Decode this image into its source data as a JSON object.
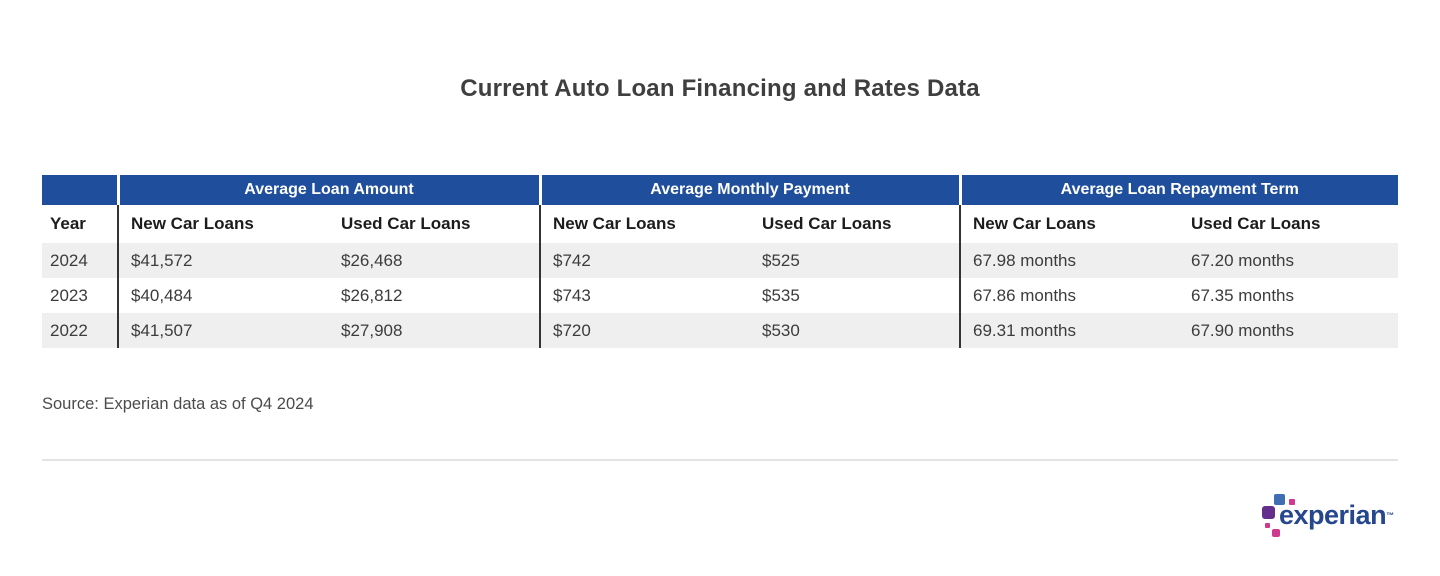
{
  "title": "Current Auto Loan Financing and Rates Data",
  "table": {
    "year_header": "Year",
    "groups": [
      {
        "label": "Average Loan Amount"
      },
      {
        "label": "Average Monthly Payment"
      },
      {
        "label": "Average Loan Repayment Term"
      }
    ],
    "sub_headers": [
      "New Car Loans",
      "Used Car Loans"
    ],
    "rows": [
      {
        "year": "2024",
        "values": [
          "$41,572",
          "$26,468",
          "$742",
          "$525",
          "67.98 months",
          "67.20 months"
        ]
      },
      {
        "year": "2023",
        "values": [
          "$40,484",
          "$26,812",
          "$743",
          "$535",
          "67.86 months",
          "67.35 months"
        ]
      },
      {
        "year": "2022",
        "values": [
          "$41,507",
          "$27,908",
          "$720",
          "$530",
          "69.31 months",
          "67.90 months"
        ]
      }
    ]
  },
  "source": "Source: Experian data as of Q4 2024",
  "logo": {
    "wordmark": "experian",
    "tm": "™"
  },
  "colors": {
    "header_blue": "#1e4e9c",
    "row_alt_gray": "#efefef",
    "wordmark_blue": "#26478d",
    "logo_blue": "#406eb3",
    "logo_purple": "#632e8c",
    "logo_magenta": "#cf3a8e",
    "divider_gray": "#e3e3e3"
  },
  "chart_data": {
    "type": "table",
    "title": "Current Auto Loan Financing and Rates Data",
    "categories": [
      "2024",
      "2023",
      "2022"
    ],
    "series": [
      {
        "name": "Average Loan Amount - New Car Loans",
        "values": [
          "$41,572",
          "$40,484",
          "$41,507"
        ]
      },
      {
        "name": "Average Loan Amount - Used Car Loans",
        "values": [
          "$26,468",
          "$26,812",
          "$27,908"
        ]
      },
      {
        "name": "Average Monthly Payment - New Car Loans",
        "values": [
          "$742",
          "$743",
          "$720"
        ]
      },
      {
        "name": "Average Monthly Payment - Used Car Loans",
        "values": [
          "$525",
          "$535",
          "$530"
        ]
      },
      {
        "name": "Average Loan Repayment Term - New Car Loans",
        "values": [
          "67.98 months",
          "67.86 months",
          "69.31 months"
        ]
      },
      {
        "name": "Average Loan Repayment Term - Used Car Loans",
        "values": [
          "67.20 months",
          "67.35 months",
          "67.90 months"
        ]
      }
    ],
    "source": "Source: Experian data as of Q4 2024"
  }
}
